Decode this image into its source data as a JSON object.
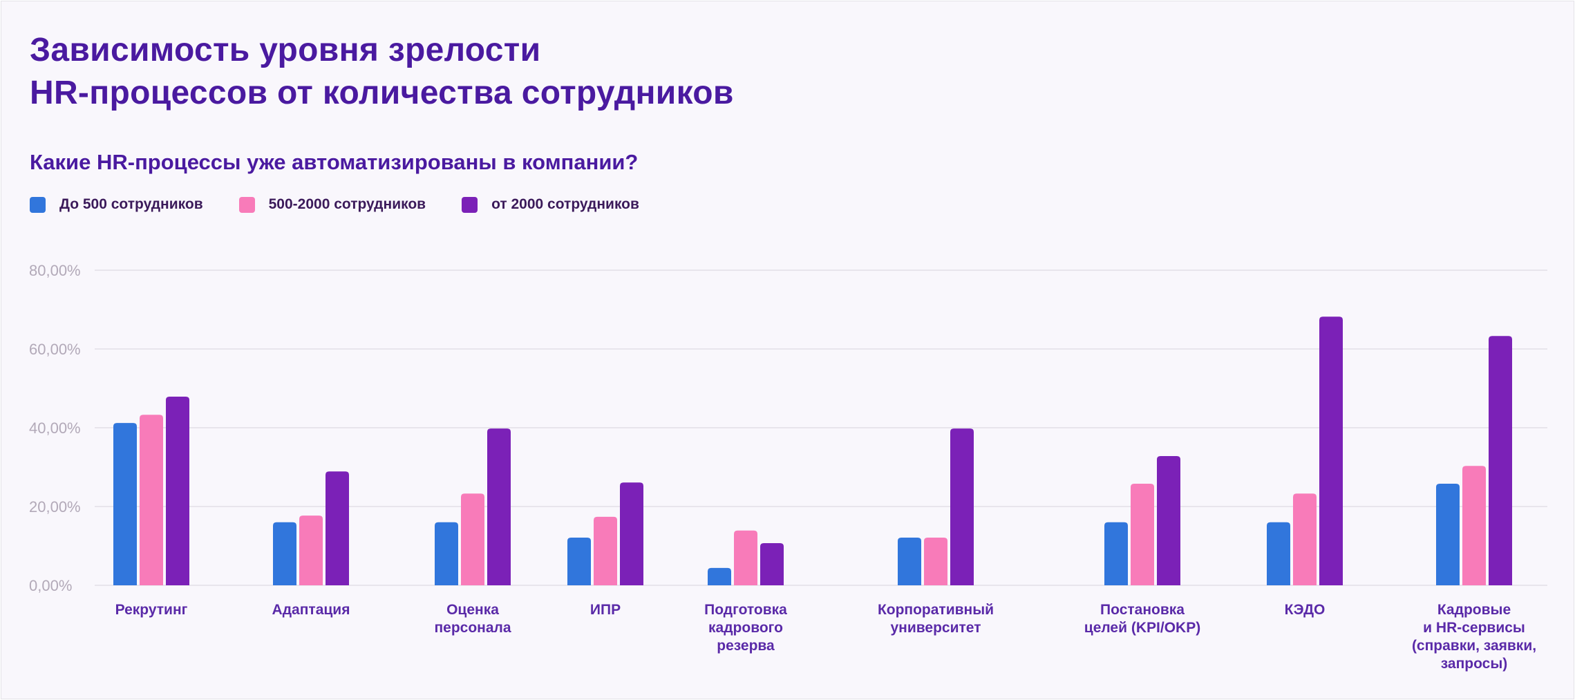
{
  "header": {
    "title_lines": [
      "Зависимость уровня зрелости",
      "HR-процессов от количества сотрудников"
    ],
    "subtitle": "Какие HR-процессы уже автоматизированы в компании?"
  },
  "colors": {
    "background": "#f9f7fc",
    "title": "#4a1aa0",
    "gridline": "#e8e5ec",
    "series_1": "#3176dc",
    "series_2": "#f87bb9",
    "series_3": "#7b21b7"
  },
  "chart_data": {
    "type": "bar",
    "title": "Какие HR-процессы уже автоматизированы в компании?",
    "xlabel": "",
    "ylabel": "",
    "ylim": [
      0,
      80
    ],
    "yticks": [
      0,
      20,
      40,
      60,
      80
    ],
    "ytick_labels": [
      "0,00%",
      "20,00%",
      "40,00%",
      "60,00%",
      "80,00%"
    ],
    "grid": true,
    "legend_position": "top-left",
    "categories": [
      [
        "Рекрутинг"
      ],
      [
        "Адаптация"
      ],
      [
        "Оценка",
        "персонала"
      ],
      [
        "ИПР"
      ],
      [
        "Подготовка",
        "кадрового",
        "резерва"
      ],
      [
        "Корпоративный",
        "университет"
      ],
      [
        "Постановка",
        "целей (KPI/OKP)"
      ],
      [
        "КЭДО"
      ],
      [
        "Кадровые",
        "и HR-сервисы",
        "(справки, заявки,",
        "запросы)"
      ]
    ],
    "series": [
      {
        "name": "До 500 сотрудников",
        "color": "#3176dc",
        "values": [
          41.2,
          16.0,
          16.0,
          12.1,
          4.4,
          12.1,
          16.0,
          16.0,
          25.8
        ]
      },
      {
        "name": "500-2000 сотрудников",
        "color": "#f87bb9",
        "values": [
          43.3,
          17.7,
          23.3,
          17.4,
          13.9,
          12.1,
          25.8,
          23.3,
          30.3
        ]
      },
      {
        "name": "от 2000 сотрудников",
        "color": "#7b21b7",
        "values": [
          47.9,
          28.9,
          39.8,
          26.1,
          10.7,
          39.8,
          32.8,
          68.2,
          63.3
        ]
      }
    ]
  }
}
